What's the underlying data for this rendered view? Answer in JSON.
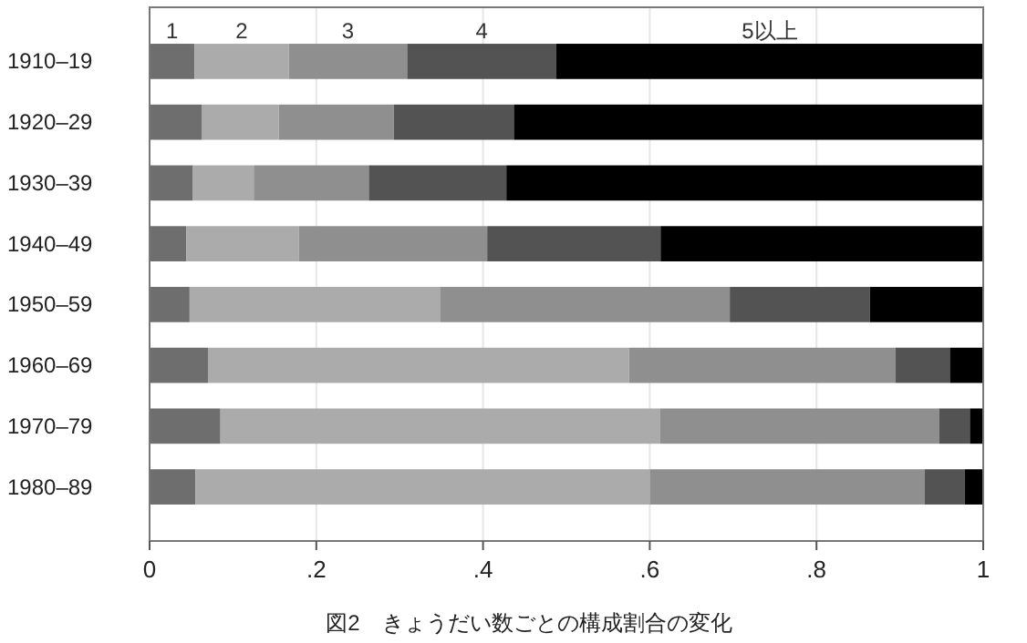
{
  "chart_data": {
    "type": "bar",
    "orientation": "horizontal",
    "stacked": true,
    "title": "図2　きょうだい数ごとの構成割合の変化",
    "categories": [
      "1910–19",
      "1920–29",
      "1930–39",
      "1940–49",
      "1950–59",
      "1960–69",
      "1970–79",
      "1980–89"
    ],
    "series": [
      {
        "name": "1",
        "color": "#6e6e6e",
        "values": [
          0.054,
          0.063,
          0.052,
          0.044,
          0.048,
          0.07,
          0.085,
          0.055
        ]
      },
      {
        "name": "2",
        "color": "#ababab",
        "values": [
          0.113,
          0.092,
          0.073,
          0.135,
          0.301,
          0.505,
          0.527,
          0.545
        ]
      },
      {
        "name": "3",
        "color": "#8f8f8f",
        "values": [
          0.142,
          0.138,
          0.138,
          0.226,
          0.347,
          0.32,
          0.335,
          0.33
        ]
      },
      {
        "name": "4",
        "color": "#535353",
        "values": [
          0.179,
          0.144,
          0.165,
          0.208,
          0.168,
          0.065,
          0.037,
          0.048
        ]
      },
      {
        "name": "5以上",
        "color": "#000000",
        "values": [
          0.512,
          0.563,
          0.572,
          0.387,
          0.136,
          0.04,
          0.016,
          0.022
        ]
      }
    ],
    "xlim": [
      0,
      1
    ],
    "xticks": [
      {
        "value": 0,
        "label": "0"
      },
      {
        "value": 0.2,
        "label": ".2"
      },
      {
        "value": 0.4,
        "label": ".4"
      },
      {
        "value": 0.6,
        "label": ".6"
      },
      {
        "value": 0.8,
        "label": ".8"
      },
      {
        "value": 1,
        "label": "1"
      }
    ],
    "grid": "x"
  }
}
